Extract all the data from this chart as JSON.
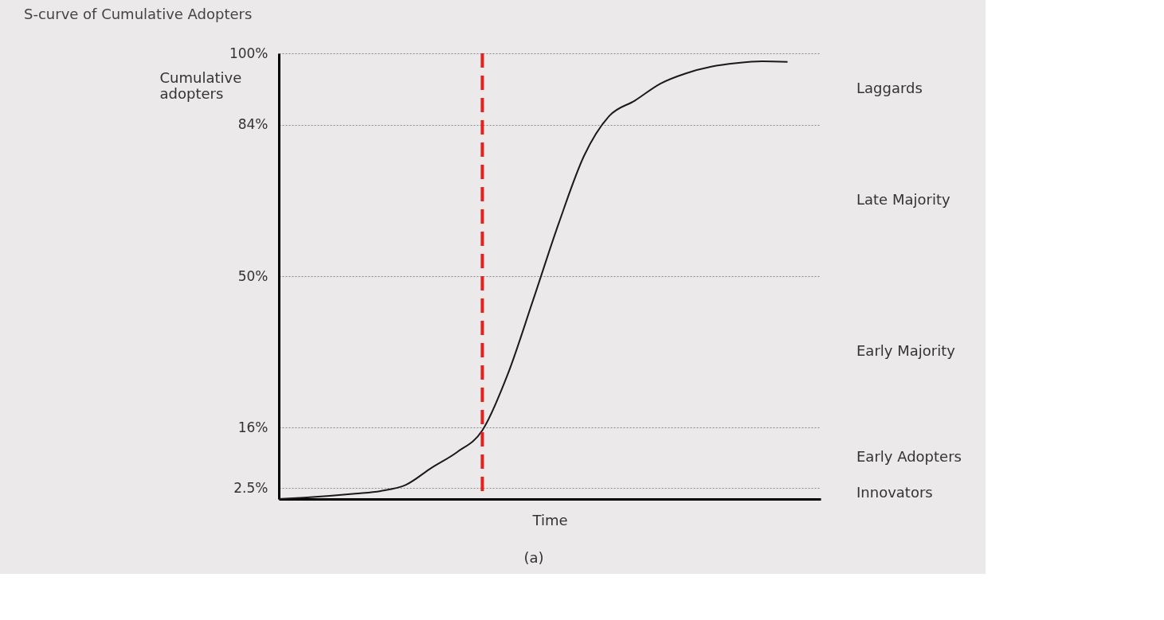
{
  "chart_data": {
    "type": "line",
    "title": "S-curve of Cumulative Adopters",
    "xlabel": "Time",
    "ylabel": "Cumulative adopters",
    "categories": [
      null,
      null,
      null,
      null,
      null,
      null,
      null,
      null,
      null,
      null,
      null,
      null,
      null,
      null,
      null,
      null,
      null,
      null,
      null,
      null,
      null
    ],
    "series": [
      {
        "color": "#1a1a1a",
        "line_style": "solid",
        "values": [
          0,
          0.3,
          0.7,
          1.2,
          1.8,
          3.2,
          7,
          10.5,
          15.4,
          28,
          44.7,
          61.8,
          77,
          86,
          89.4,
          93.2,
          95.5,
          97,
          97.8,
          98.2,
          98.1
        ]
      }
    ],
    "ylim": [
      0,
      100
    ],
    "yticks": [
      {
        "value": 2.5,
        "label": "2.5%"
      },
      {
        "value": 16,
        "label": "16%"
      },
      {
        "value": 50,
        "label": "50%"
      },
      {
        "value": 84,
        "label": "84%"
      },
      {
        "value": 100,
        "label": "100%"
      }
    ],
    "tick_labels": "y",
    "grid": "y",
    "marker": "none",
    "annotations": [
      "Innovators",
      "Early Adopters",
      "Early Majority",
      "Late Majority",
      "Laggards",
      "(a)"
    ]
  }
}
